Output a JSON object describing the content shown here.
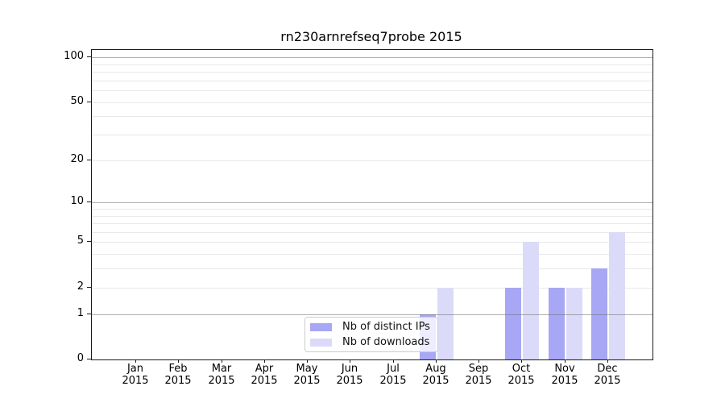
{
  "chart_data": {
    "type": "bar",
    "title": "rn230arnrefseq7probe 2015",
    "categories": [
      "Jan",
      "Feb",
      "Mar",
      "Apr",
      "May",
      "Jun",
      "Jul",
      "Aug",
      "Sep",
      "Oct",
      "Nov",
      "Dec"
    ],
    "category_year": "2015",
    "series": [
      {
        "name": "Nb of distinct IPs",
        "color": "#a7a7f5",
        "values": [
          0,
          0,
          0,
          0,
          0,
          0,
          0,
          1,
          0,
          2,
          2,
          3
        ]
      },
      {
        "name": "Nb of downloads",
        "color": "#dbdbf9",
        "values": [
          0,
          0,
          0,
          0,
          0,
          0,
          0,
          2,
          0,
          5,
          2,
          6
        ]
      }
    ],
    "xlabel": "",
    "ylabel": "",
    "y_scale": "log1p",
    "y_ticks": [
      0,
      1,
      2,
      5,
      10,
      20,
      50,
      100
    ],
    "ylim": [
      0,
      112
    ],
    "grid_major_values": [
      1,
      10,
      100
    ],
    "grid_minor_values": [
      2,
      3,
      4,
      5,
      6,
      7,
      8,
      9,
      20,
      30,
      40,
      50,
      60,
      70,
      80,
      90
    ],
    "grid": "on",
    "legend_position": "lower center"
  }
}
